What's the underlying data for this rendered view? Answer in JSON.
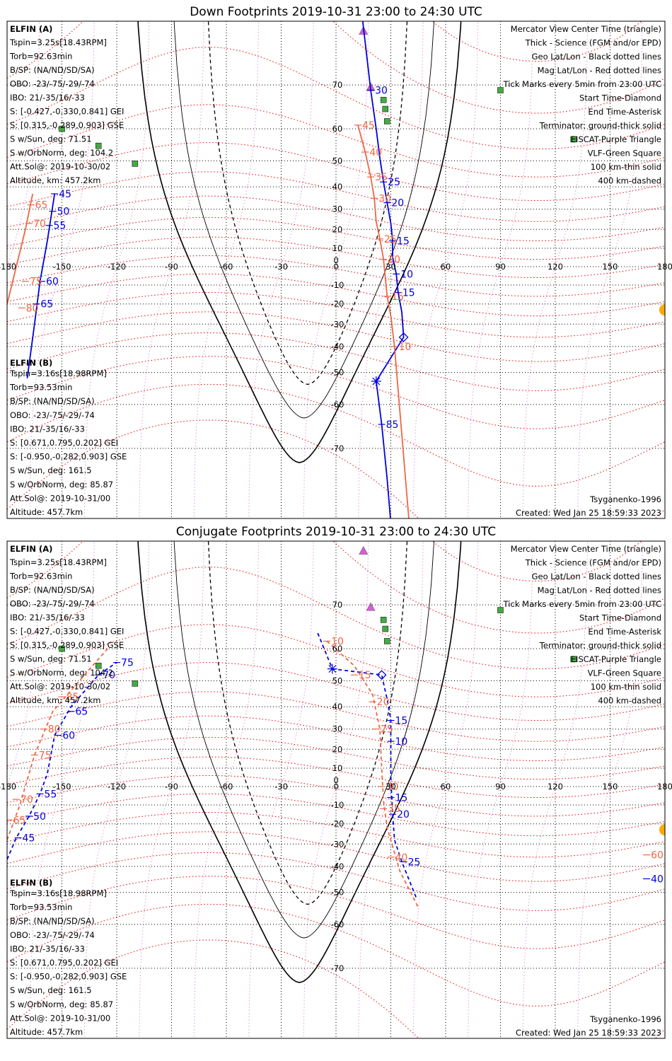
{
  "colors": {
    "elfin_a": "#0000dd",
    "elfin_b": "#ee6644",
    "mag": "#ee0000",
    "eiscat": "#cc66cc",
    "vlf": "#44aa44",
    "sun": "#ffaa00",
    "geo": "#000000"
  },
  "icons": {
    "start": "diamond-icon",
    "end": "asterisk-icon",
    "center": "triangle-icon",
    "sun": "sun-icon",
    "eiscat": "purple-triangle-icon",
    "vlf": "green-square-icon"
  },
  "legend": [
    {
      "text": "Mercator View Center Time (triangle)",
      "color": "#000000"
    },
    {
      "text": "Thick - Science (FGM and/or EPD)",
      "color": "#000000"
    },
    {
      "text": "Geo Lat/Lon - Black dotted lines",
      "color": "#000000"
    },
    {
      "text": "Mag Lat/Lon - Red dotted lines",
      "color": "#ee0000"
    },
    {
      "text": "Tick Marks every 5min from 23:00 UTC",
      "color": "#000000"
    },
    {
      "text": "Start Time-Diamond",
      "color": "#000000"
    },
    {
      "text": "End Time-Asterisk",
      "color": "#000000"
    },
    {
      "text": "Terminator: ground-thick solid",
      "color": "#000000"
    },
    {
      "text": "EISCAT-Purple Triangle",
      "color": "#cc66cc"
    },
    {
      "text": "VLF-Green Square",
      "color": "#44aa44"
    },
    {
      "text": "100 km-thin solid",
      "color": "#000000"
    },
    {
      "text": "400 km-dashed",
      "color": "#000000"
    }
  ],
  "info_a": {
    "header": "ELFIN (A)",
    "lines": [
      "Tspin=3.25s[18.43RPM]",
      "Torb=92.63min",
      "B/SP: (NA/ND/SD/SA)",
      "OBO: -23/-75/-29/-74",
      "IBO: 21/-35/16/-33",
      "S: [-0.427,-0.330,0.841] GEI",
      "S: [0.315,-0.289,0.903] GSE",
      "S w/Sun, deg: 71.51",
      "S w/OrbNorm, deg: 104.2",
      "Att.Sol@: 2019-10-30/02",
      "Altitude, km: 457.2km"
    ]
  },
  "info_b": {
    "header": "ELFIN (B)",
    "lines": [
      "Tspin=3.16s[18.98RPM]",
      "Torb=93.53min",
      "B/SP: (NA/ND/SD/SA)",
      "OBO: -23/-75/-29/-74",
      "IBO: 21/-35/16/-33",
      "S: [0.671,0.795,0.202] GEI",
      "S: [-0.950,-0.282,0.903] GSE",
      "S w/Sun, deg: 161.5",
      "S w/OrbNorm, deg: 85.87",
      "Att.Sol@: 2019-10-31/00",
      "Altitude: 457.7km"
    ]
  },
  "model": "Tsyganenko-1996",
  "created": "Created: Wed Jan 25 18:59:33 2023",
  "chart_data": [
    {
      "type": "map-mercator",
      "title": "Down Footprints 2019-10-31 23:00 to 24:30 UTC",
      "xlim": [
        -180,
        180
      ],
      "lon_ticks": [
        -180,
        -150,
        -120,
        -90,
        -60,
        -30,
        0,
        30,
        60,
        90,
        120,
        150,
        180
      ],
      "lat_ticks": [
        70,
        60,
        50,
        40,
        30,
        20,
        10,
        0,
        -10,
        -20,
        -30,
        -40,
        -50,
        -60,
        -70
      ],
      "sun": [
        180,
        -23
      ],
      "eiscat": [
        [
          15,
          78
        ],
        [
          19,
          69.6
        ]
      ],
      "vlf": [
        [
          -130,
          55
        ],
        [
          -110,
          49
        ],
        [
          -150,
          60
        ],
        [
          26,
          67
        ],
        [
          27,
          65
        ],
        [
          28,
          62
        ],
        [
          90,
          69
        ],
        [
          130,
          57
        ]
      ],
      "terminator_ground": {
        "min_lat": -72.5,
        "left_lon": -110,
        "right_lon": 70
      },
      "terminator_100km": {
        "min_lat": -63.5,
        "left_lon": -90,
        "right_lon": 55
      },
      "terminator_400km": {
        "min_lat": -54,
        "left_lon": -71,
        "right_lon": 40
      },
      "tracks": [
        {
          "name": "ELFIN (A)",
          "color": "#0000dd",
          "line": "solid",
          "points": [
            [
              -154,
              37
            ],
            [
              -158,
              14
            ],
            [
              -162,
              -8
            ],
            [
              -165,
              -30
            ],
            [
              -169,
              -52
            ],
            [
              14,
              80
            ],
            [
              19,
              69
            ],
            [
              22,
              60
            ],
            [
              24,
              51
            ],
            [
              26,
              42
            ],
            [
              28,
              33
            ],
            [
              30,
              23
            ],
            [
              31,
              14
            ],
            [
              31,
              5
            ],
            [
              33,
              -4
            ],
            [
              34,
              -14
            ],
            [
              36,
              -24
            ],
            [
              37,
              -36
            ],
            [
              22,
              -53
            ],
            [
              25,
              -65
            ],
            [
              28,
              -75
            ],
            [
              31,
              -82
            ]
          ],
          "labels": [
            {
              "text": "30",
              "at": [
                19,
                69
              ]
            },
            {
              "text": "25",
              "at": [
                26,
                42
              ]
            },
            {
              "text": "20",
              "at": [
                28,
                33
              ]
            },
            {
              "text": "15",
              "at": [
                31,
                14
              ]
            },
            {
              "text": "10",
              "at": [
                33,
                -4
              ]
            },
            {
              "text": "15",
              "at": [
                34,
                -14
              ]
            },
            {
              "text": "85",
              "at": [
                25,
                -65
              ]
            },
            {
              "text": "45",
              "at": [
                -154,
                37
              ]
            },
            {
              "text": "50",
              "at": [
                -155,
                29
              ]
            },
            {
              "text": "55",
              "at": [
                -157,
                22
              ]
            },
            {
              "text": "60",
              "at": [
                -161,
                -8
              ]
            },
            {
              "text": "65",
              "at": [
                -164,
                -20
              ]
            }
          ],
          "start": [
            37,
            -36
          ],
          "end": [
            22,
            -53
          ]
        },
        {
          "name": "ELFIN (B)",
          "color": "#ee6644",
          "line": "solid",
          "points": [
            [
              -166,
              37
            ],
            [
              -170,
              20
            ],
            [
              -175,
              0
            ],
            [
              -180,
              -20
            ],
            [
              12,
              61
            ],
            [
              16,
              53
            ],
            [
              19,
              44
            ],
            [
              21,
              35
            ],
            [
              22,
              24
            ],
            [
              24,
              15
            ],
            [
              26,
              4
            ],
            [
              27,
              -6
            ],
            [
              28,
              -16
            ],
            [
              30,
              -26
            ],
            [
              32,
              -40
            ],
            [
              35,
              -62
            ],
            [
              40,
              -80
            ]
          ],
          "labels": [
            {
              "text": "45",
              "at": [
                12,
                61
              ]
            },
            {
              "text": "40",
              "at": [
                16,
                53
              ]
            },
            {
              "text": "35",
              "at": [
                19,
                44
              ]
            },
            {
              "text": "30",
              "at": [
                21,
                35
              ]
            },
            {
              "text": "25",
              "at": [
                24,
                15
              ]
            },
            {
              "text": "20",
              "at": [
                26,
                4
              ]
            },
            {
              "text": "15",
              "at": [
                28,
                -16
              ]
            },
            {
              "text": "10",
              "at": [
                32,
                -40
              ]
            },
            {
              "text": "65",
              "at": [
                -167,
                32
              ]
            },
            {
              "text": "70",
              "at": [
                -168,
                23
              ]
            },
            {
              "text": "75",
              "at": [
                -170,
                -8
              ]
            },
            {
              "text": "80",
              "at": [
                -172,
                -22
              ]
            }
          ]
        }
      ]
    },
    {
      "type": "map-mercator",
      "title": "Conjugate Footprints 2019-10-31 23:00 to 24:30 UTC",
      "xlim": [
        -180,
        180
      ],
      "lon_ticks": [
        -180,
        -150,
        -120,
        -90,
        -60,
        -30,
        0,
        30,
        60,
        90,
        120,
        150,
        180
      ],
      "lat_ticks": [
        70,
        60,
        50,
        40,
        30,
        20,
        10,
        0,
        -10,
        -20,
        -30,
        -40,
        -50,
        -60,
        -70
      ],
      "sun": [
        180,
        -23
      ],
      "eiscat": [
        [
          15,
          78
        ],
        [
          19,
          69.6
        ]
      ],
      "vlf": [
        [
          -130,
          55
        ],
        [
          -110,
          49
        ],
        [
          -150,
          60
        ],
        [
          26,
          67
        ],
        [
          27,
          65
        ],
        [
          28,
          62
        ],
        [
          90,
          69
        ],
        [
          130,
          57
        ]
      ],
      "terminator_ground": {
        "min_lat": -72.5,
        "left_lon": -110,
        "right_lon": 70
      },
      "terminator_100km": {
        "min_lat": -63.5,
        "left_lon": -90,
        "right_lon": 55
      },
      "terminator_400km": {
        "min_lat": -54,
        "left_lon": -71,
        "right_lon": 40
      },
      "tracks": [
        {
          "name": "ELFIN (A)",
          "color": "#0000dd",
          "line": "dashed",
          "points": [
            [
              -180,
              -37
            ],
            [
              -175,
              -27
            ],
            [
              -168,
              -16
            ],
            [
              -162,
              -4
            ],
            [
              -158,
              7
            ],
            [
              -154,
              27
            ],
            [
              -145,
              40
            ],
            [
              -130,
              52
            ],
            [
              -120,
              56
            ],
            [
              -10,
              64
            ],
            [
              -2,
              54
            ],
            [
              25,
              52
            ],
            [
              28,
              43
            ],
            [
              30,
              34
            ],
            [
              30,
              24
            ],
            [
              30,
              5
            ],
            [
              31,
              -15
            ],
            [
              32,
              -28
            ],
            [
              36,
              -38
            ],
            [
              44,
              -52
            ]
          ],
          "labels": [
            {
              "text": "75",
              "at": [
                -120,
                56
              ]
            },
            {
              "text": "70",
              "at": [
                -130,
                52
              ]
            },
            {
              "text": "65",
              "at": [
                -145,
                38
              ]
            },
            {
              "text": "60",
              "at": [
                -152,
                27
              ]
            },
            {
              "text": "55",
              "at": [
                -162,
                -4
              ]
            },
            {
              "text": "50",
              "at": [
                -168,
                -16
              ]
            },
            {
              "text": "45",
              "at": [
                -174,
                -27
              ]
            },
            {
              "text": "15",
              "at": [
                30,
                34
              ]
            },
            {
              "text": "10",
              "at": [
                30,
                24
              ]
            },
            {
              "text": "15",
              "at": [
                30,
                -6
              ]
            },
            {
              "text": "20",
              "at": [
                31,
                -15
              ]
            },
            {
              "text": "25",
              "at": [
                37,
                -38
              ]
            },
            {
              "text": "40",
              "at": [
                170,
                -45
              ]
            }
          ],
          "start": [
            25,
            52
          ],
          "end": [
            -2,
            54
          ]
        },
        {
          "name": "ELFIN (B)",
          "color": "#ee6644",
          "line": "dashed",
          "points": [
            [
              -180,
              -28
            ],
            [
              -173,
              -10
            ],
            [
              -165,
              17
            ],
            [
              -155,
              38
            ],
            [
              -125,
              60
            ],
            [
              -5,
              62
            ],
            [
              10,
              55
            ],
            [
              20,
              45
            ],
            [
              24,
              30
            ],
            [
              25,
              10
            ],
            [
              26,
              -8
            ],
            [
              28,
              -22
            ],
            [
              35,
              -42
            ],
            [
              45,
              -55
            ]
          ],
          "labels": [
            {
              "text": "10",
              "at": [
                -5,
                62
              ]
            },
            {
              "text": "15",
              "at": [
                10,
                52
              ]
            },
            {
              "text": "20",
              "at": [
                20,
                42
              ]
            },
            {
              "text": "25",
              "at": [
                22,
                30
              ]
            },
            {
              "text": "30",
              "at": [
                25,
                0
              ]
            },
            {
              "text": "35",
              "at": [
                26,
                -12
              ]
            },
            {
              "text": "40",
              "at": [
                30,
                -36
              ]
            },
            {
              "text": "85",
              "at": [
                -150,
                44
              ]
            },
            {
              "text": "80",
              "at": [
                -160,
                30
              ]
            },
            {
              "text": "75",
              "at": [
                -165,
                17
              ]
            },
            {
              "text": "70",
              "at": [
                -175,
                -7
              ]
            },
            {
              "text": "65",
              "at": [
                -179,
                -18
              ]
            },
            {
              "text": "60",
              "at": [
                170,
                -35
              ]
            }
          ]
        }
      ]
    }
  ]
}
